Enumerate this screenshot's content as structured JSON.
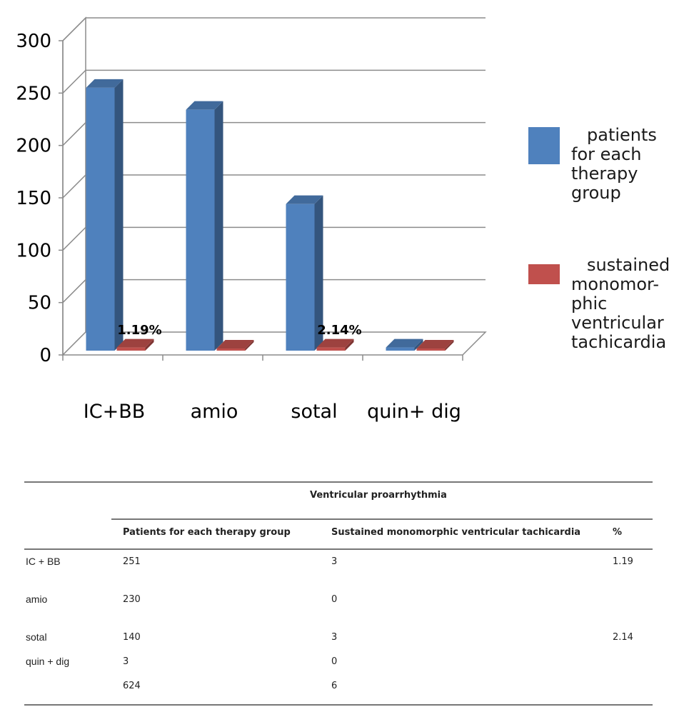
{
  "chart_data": {
    "type": "bar",
    "categories": [
      "IC+BB",
      "amio",
      "sotal",
      "quin+ dig"
    ],
    "series": [
      {
        "name": "patients for each therapy group",
        "values": [
          251,
          230,
          140,
          3
        ],
        "color": "#4f81bd"
      },
      {
        "name": "sustained monomorphic ventricular tachicardia",
        "values": [
          3,
          0,
          3,
          0
        ],
        "color": "#c0504d"
      }
    ],
    "yticks": [
      "0",
      "50",
      "100",
      "150",
      "200",
      "250",
      "300"
    ],
    "ylim": [
      0,
      300
    ],
    "data_labels": [
      {
        "category": "IC+BB",
        "text": "1.19%"
      },
      {
        "category": "sotal",
        "text": "2.14%"
      }
    ],
    "grid": true,
    "legend_position": "right",
    "legend_lines": [
      [
        "patients",
        "for each",
        "therapy",
        "group"
      ],
      [
        "sustained",
        "monomor-",
        "phic",
        "ventricular",
        "tachicardia"
      ]
    ]
  },
  "table": {
    "title": "Ventricular proarrhythmia",
    "columns": [
      "",
      "Patients for each therapy group",
      "Sustained monomorphic  ventricular tachicardia",
      "%"
    ],
    "rows": [
      [
        "IC + BB",
        "251",
        "3",
        "1.19"
      ],
      [
        "amio",
        "230",
        "0",
        ""
      ],
      [
        "sotal",
        "140",
        "3",
        "2.14"
      ],
      [
        "quin + dig",
        "3",
        "0",
        ""
      ],
      [
        "",
        "624",
        "6",
        ""
      ]
    ]
  }
}
